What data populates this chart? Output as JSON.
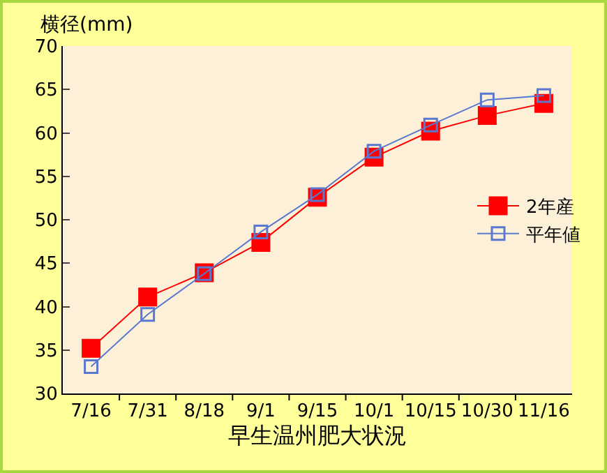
{
  "chart_data": {
    "type": "line",
    "xlabel": "早生温州肥大状況",
    "ylabel": "横径(mm)",
    "categories": [
      "7/16",
      "7/31",
      "8/18",
      "9/1",
      "9/15",
      "10/1",
      "10/15",
      "10/30",
      "11/16"
    ],
    "series": [
      {
        "name": "2年産",
        "color": "#ff0000",
        "marker": "square",
        "values": [
          35.2,
          41.1,
          43.9,
          47.4,
          52.6,
          57.2,
          60.2,
          62.0,
          63.4
        ]
      },
      {
        "name": "平年値",
        "color": "#5b78d0",
        "marker": "square-open",
        "values": [
          33.1,
          39.1,
          43.8,
          48.6,
          52.9,
          57.9,
          60.9,
          63.8,
          64.3
        ]
      }
    ],
    "ylim": [
      30,
      70
    ],
    "yticks": [
      30,
      35,
      40,
      45,
      50,
      55,
      60,
      65,
      70
    ],
    "grid": false,
    "legend": "right"
  }
}
